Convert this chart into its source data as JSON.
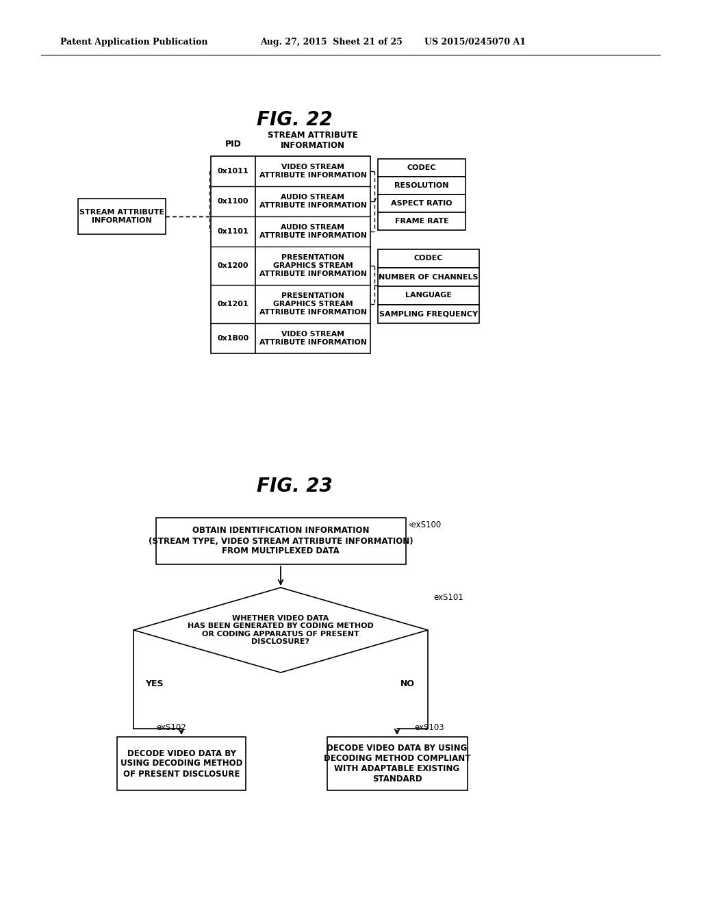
{
  "bg_color": "#ffffff",
  "header_left": "Patent Application Publication",
  "header_mid": "Aug. 27, 2015  Sheet 21 of 25",
  "header_right": "US 2015/0245070 A1",
  "fig22_title": "FIG. 22",
  "fig23_title": "FIG. 23",
  "fig22": {
    "pid_label": "PID",
    "sai_header": "STREAM ATTRIBUTE\nINFORMATION",
    "left_box_text": "STREAM ATTRIBUTE\nINFORMATION",
    "table_rows": [
      {
        "pid": "0x1011",
        "text": "VIDEO STREAM\nATTRIBUTE INFORMATION"
      },
      {
        "pid": "0x1100",
        "text": "AUDIO STREAM\nATTRIBUTE INFORMATION"
      },
      {
        "pid": "0x1101",
        "text": "AUDIO STREAM\nATTRIBUTE INFORMATION"
      },
      {
        "pid": "0x1200",
        "text": "PRESENTATION\nGRAPHICS STREAM\nATTRIBUTE INFORMATION"
      },
      {
        "pid": "0x1201",
        "text": "PRESENTATION\nGRAPHICS STREAM\nATTRIBUTE INFORMATION"
      },
      {
        "pid": "0x1B00",
        "text": "VIDEO STREAM\nATTRIBUTE INFORMATION"
      }
    ],
    "right_group1": [
      "CODEC",
      "RESOLUTION",
      "ASPECT RATIO",
      "FRAME RATE"
    ],
    "right_group2": [
      "CODEC",
      "NUMBER OF CHANNELS",
      "LANGUAGE",
      "SAMPLING FREQUENCY"
    ]
  },
  "fig23": {
    "box_exs100_text": "OBTAIN IDENTIFICATION INFORMATION\n(STREAM TYPE, VIDEO STREAM ATTRIBUTE INFORMATION)\nFROM MULTIPLEXED DATA",
    "box_exs100_label": "‹exS100",
    "diamond_exs101_text": "WHETHER VIDEO DATA\nHAS BEEN GENERATED BY CODING METHOD\nOR CODING APPARATUS OF PRESENT\nDISCLOSURE?",
    "diamond_exs101_label": "exS101",
    "yes_label": "YES",
    "no_label": "NO",
    "box_exs102_text": "DECODE VIDEO DATA BY\nUSING DECODING METHOD\nOF PRESENT DISCLOSURE",
    "box_exs102_label": "exS102",
    "box_exs103_text": "DECODE VIDEO DATA BY USING\nDECODING METHOD COMPLIANT\nWITH ADAPTABLE EXISTING\nSTANDARD",
    "box_exs103_label": "exS103"
  }
}
